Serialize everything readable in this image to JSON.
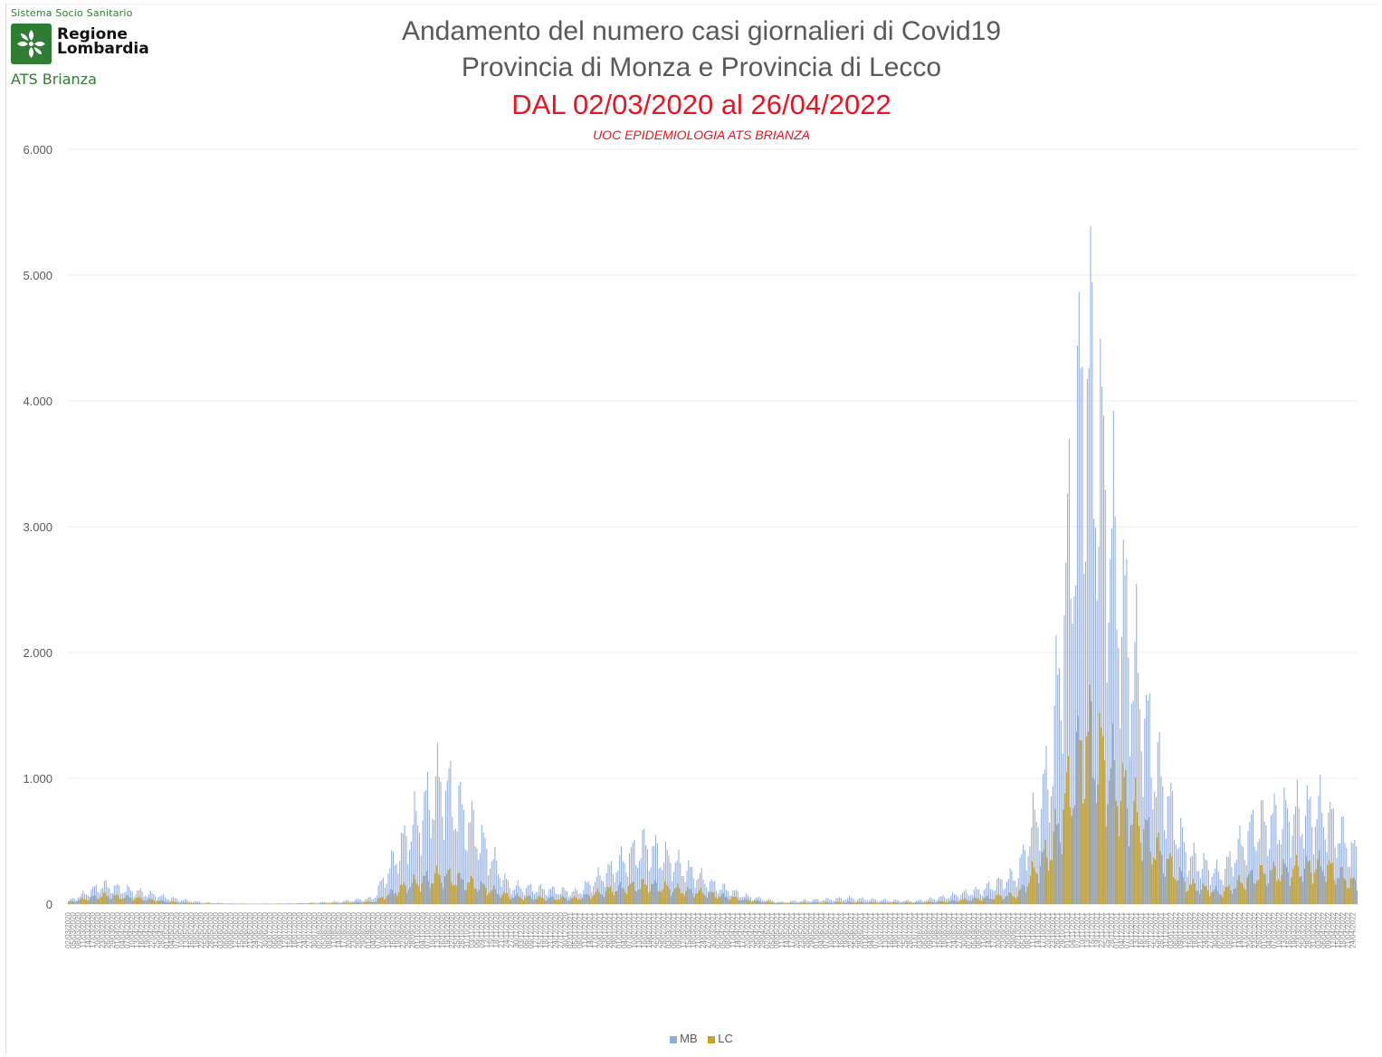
{
  "logo": {
    "sistema": "Sistema Socio Sanitario",
    "name_line1": "Regione",
    "name_line2": "Lombardia",
    "ats": "ATS Brianza",
    "brand_color": "#2e7d32"
  },
  "chart_data": {
    "type": "bar",
    "title_line1": "Andamento del numero casi giornalieri di Covid19",
    "title_line2": "Provincia di Monza e Provincia di Lecco",
    "title_line3": "DAL 02/03/2020 al 26/04/2022",
    "source": "UOC EPIDEMIOLOGIA ATS BRIANZA",
    "x_start": "02/03/2020",
    "x_end": "26/04/2022",
    "ylim": [
      0,
      6000
    ],
    "yticks": [
      "0",
      "1.000",
      "2.000",
      "3.000",
      "4.000",
      "5.000",
      "6.000"
    ],
    "grid": true,
    "legend_position": "bottom",
    "colors": {
      "MB": "#8faadc",
      "LC": "#c9a227"
    },
    "weekly_index": [
      "W1",
      "W5",
      "W9",
      "W13",
      "W17",
      "W21",
      "W25",
      "W29",
      "W33",
      "W37",
      "W41",
      "W45",
      "W49",
      "W53",
      "W57",
      "W61",
      "W65",
      "W69",
      "W73",
      "W77",
      "W81",
      "W85",
      "W89",
      "W93",
      "W97",
      "W101",
      "W105",
      "W109",
      "W113"
    ],
    "series": [
      {
        "name": "MB",
        "values": [
          30,
          190,
          130,
          60,
          15,
          5,
          5,
          10,
          25,
          60,
          700,
          1250,
          750,
          180,
          150,
          120,
          350,
          600,
          400,
          200,
          80,
          20,
          40,
          60,
          40,
          30,
          80,
          150,
          300,
          1400,
          5600,
          3200,
          1500,
          500,
          300,
          800,
          900,
          950,
          500
        ]
      },
      {
        "name": "LC",
        "values": [
          20,
          90,
          60,
          20,
          5,
          2,
          2,
          5,
          10,
          25,
          200,
          300,
          200,
          80,
          60,
          60,
          150,
          200,
          150,
          100,
          40,
          10,
          15,
          20,
          15,
          15,
          30,
          60,
          100,
          600,
          1750,
          1200,
          600,
          200,
          120,
          300,
          350,
          400,
          200
        ]
      }
    ]
  }
}
